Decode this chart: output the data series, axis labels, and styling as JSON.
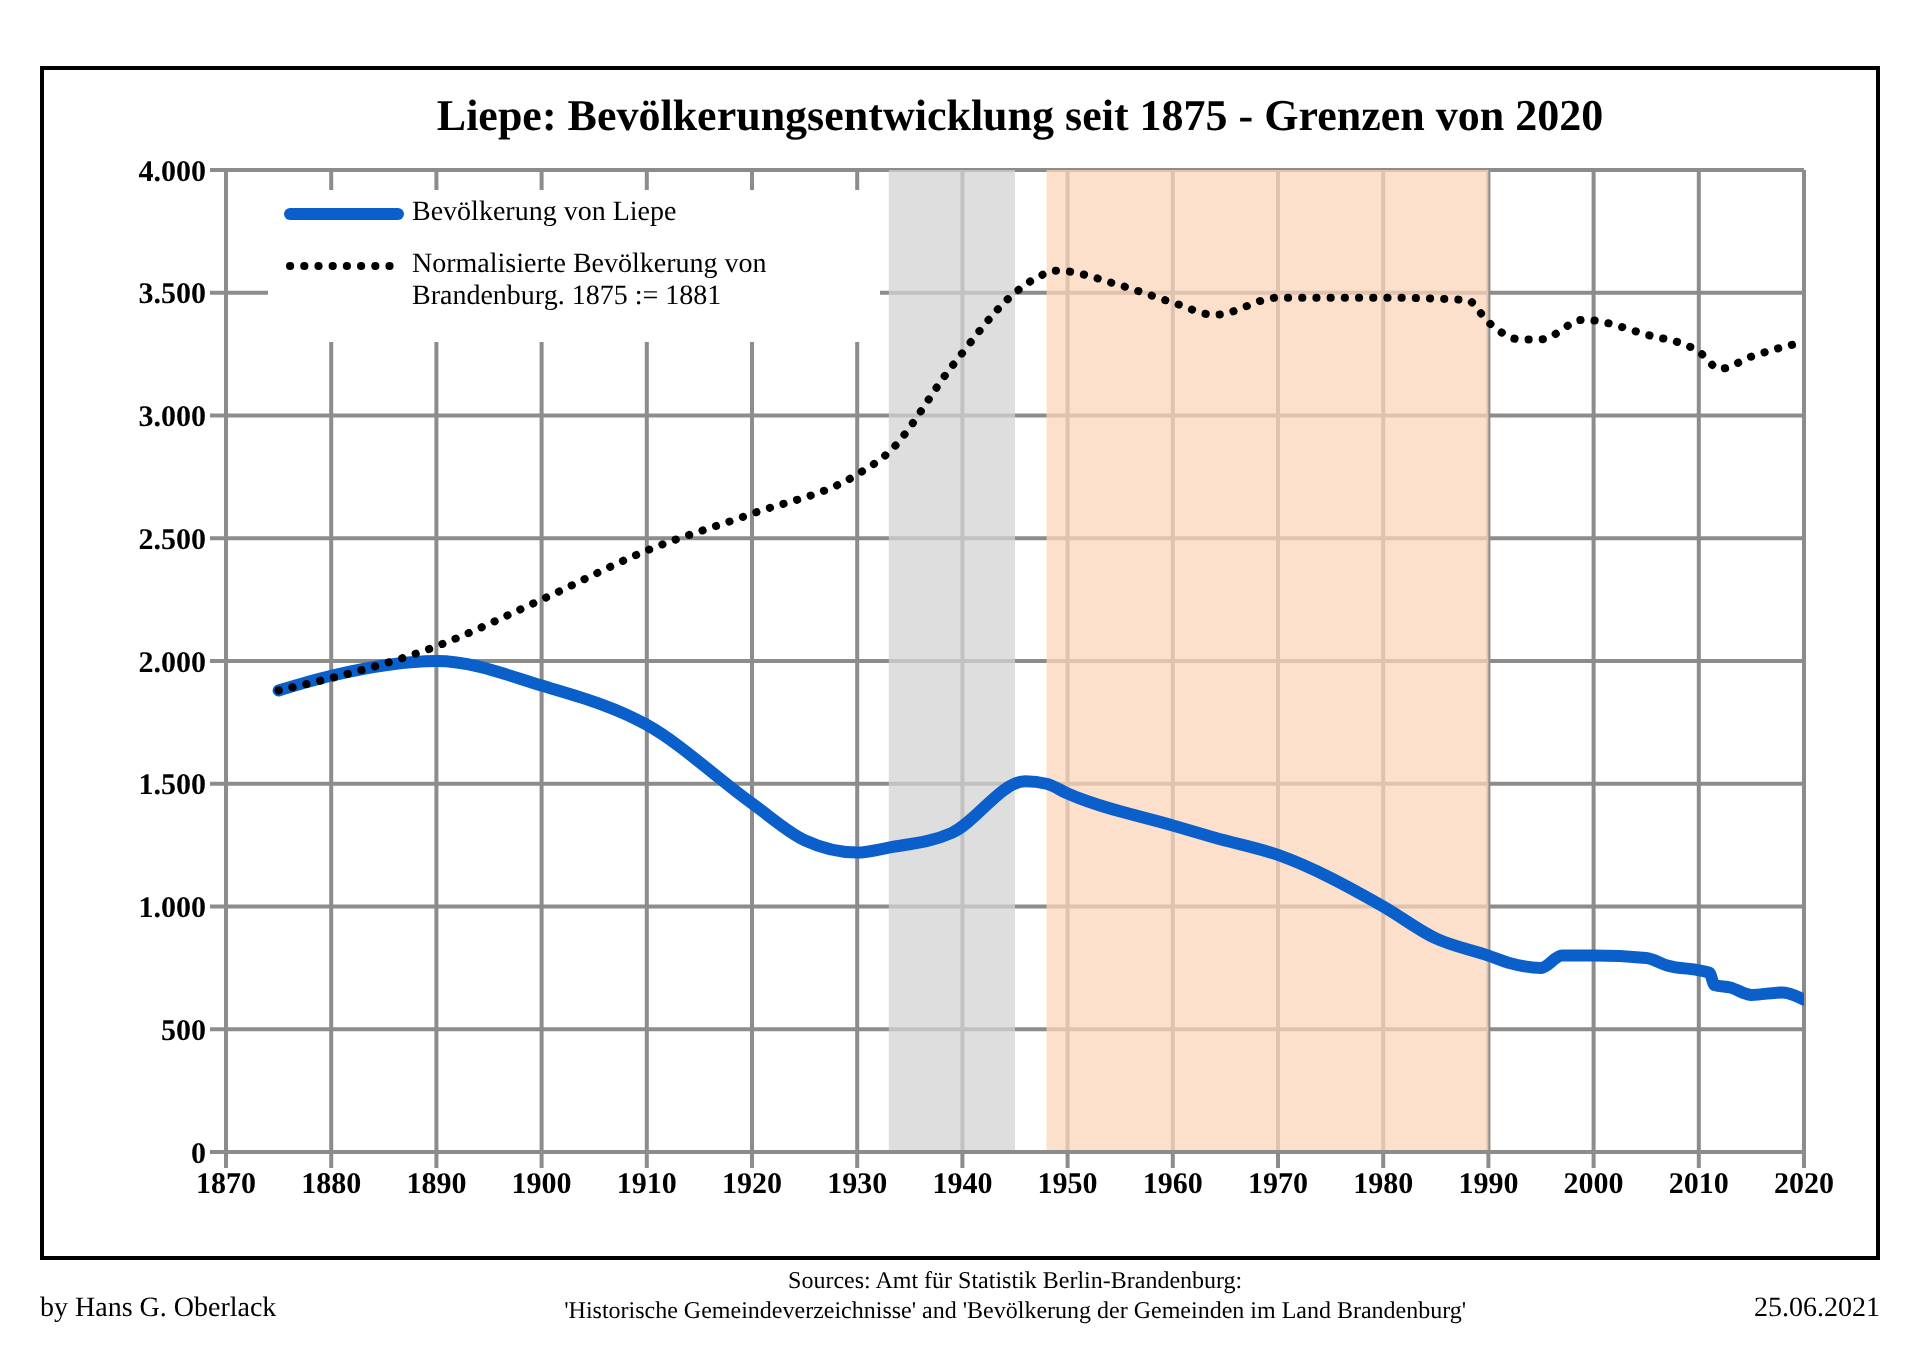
{
  "chart_data": {
    "type": "line",
    "title": "Liepe: Bevölkerungsentwicklung seit 1875 - Grenzen von 2020",
    "xlim": [
      1870,
      2020
    ],
    "xticks": [
      1870,
      1880,
      1890,
      1900,
      1910,
      1920,
      1930,
      1940,
      1950,
      1960,
      1970,
      1980,
      1990,
      2000,
      2010,
      2020
    ],
    "ylim": [
      0,
      4000
    ],
    "yticks": [
      0,
      500,
      {
        "value": 1000,
        "label": "1.000"
      },
      {
        "value": 1500,
        "label": "1.500"
      },
      {
        "value": 2000,
        "label": "2.000"
      },
      {
        "value": 2500,
        "label": "2.500"
      },
      {
        "value": 3000,
        "label": "3.000"
      },
      {
        "value": 3500,
        "label": "3.500"
      },
      {
        "value": 4000,
        "label": "4.000"
      }
    ],
    "grid": true,
    "legend": "top left",
    "marker": "none",
    "series": [
      {
        "name": "Bevölkerung von Liepe",
        "color": "#0a5fca",
        "line_style": "solid",
        "x": [
          1875,
          1880,
          1890,
          1900,
          1910,
          1920,
          1925,
          1930,
          1933,
          1939,
          1946,
          1948,
          1950,
          1960,
          1964,
          1970,
          1980,
          1985,
          1990,
          1992,
          1995,
          1997,
          2000,
          2005,
          2007,
          2011,
          2011.5,
          2013,
          2015,
          2018,
          2020
        ],
        "values": [
          1880,
          1940,
          2000,
          1900,
          1740,
          1420,
          1270,
          1220,
          1240,
          1300,
          1510,
          1500,
          1460,
          1330,
          1280,
          1210,
          1000,
          870,
          800,
          770,
          750,
          800,
          800,
          790,
          760,
          730,
          680,
          670,
          640,
          650,
          620
        ]
      },
      {
        "name": "Normalisierte Bevölkerung von Brandenburg. 1875 := 1881",
        "color": "#000000",
        "line_style": "dotted",
        "x": [
          1875,
          1890,
          1900,
          1910,
          1920,
          1930,
          1933,
          1939,
          1945,
          1947,
          1949,
          1955,
          1960,
          1964,
          1970,
          1980,
          1988,
          1990,
          1993,
          1995,
          1999,
          2005,
          2010,
          2012,
          2015,
          2020
        ],
        "values": [
          1880,
          2060,
          2250,
          2450,
          2600,
          2760,
          2850,
          3200,
          3500,
          3560,
          3590,
          3530,
          3460,
          3410,
          3480,
          3480,
          3470,
          3380,
          3310,
          3310,
          3390,
          3330,
          3260,
          3190,
          3240,
          3300
        ]
      }
    ],
    "bands": [
      {
        "axis": "x",
        "from": 1933,
        "to": 1945,
        "color": "#d3d3d3"
      },
      {
        "axis": "x",
        "from": 1948,
        "to": 1990,
        "color": "#fbd5bb"
      }
    ],
    "annotations": [
      "by Hans G. Oberlack",
      "Sources: Amt für Statistik Berlin-Brandenburg:\n'Historische Gemeindeverzeichnisse' and 'Bevölkerung der Gemeinden im Land Brandenburg'",
      "25.06.2021"
    ]
  }
}
